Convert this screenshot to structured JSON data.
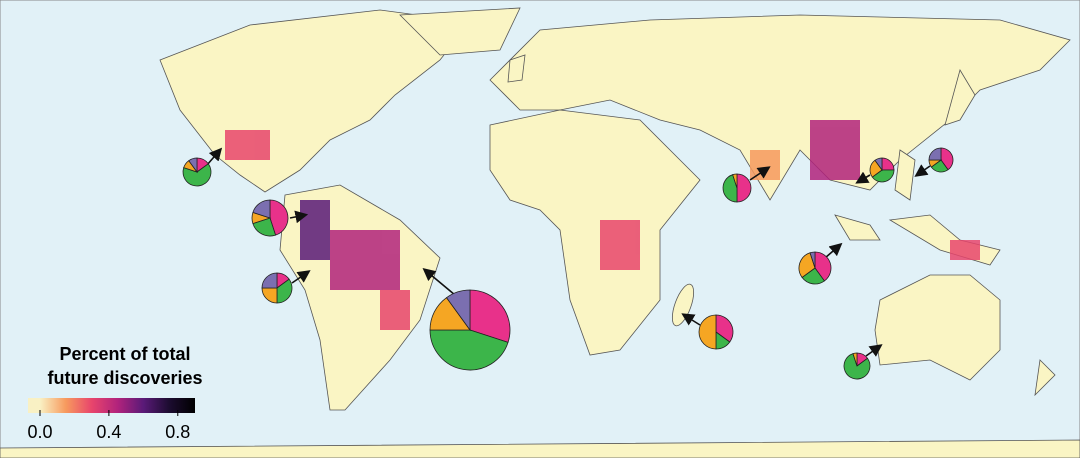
{
  "legend": {
    "title_lines": [
      "Percent of total",
      "future discoveries"
    ],
    "clim": [
      0,
      0.9
    ],
    "ticks": [
      {
        "value": 0,
        "label": "0.0"
      },
      {
        "value": 0.4,
        "label": "0.4"
      },
      {
        "value": 0.8,
        "label": "0.8"
      }
    ],
    "colors": [
      "#f9f1c4",
      "#f79a5e",
      "#e8456c",
      "#b2237c",
      "#5a1a78",
      "#1c0c30",
      "#000000"
    ]
  },
  "pie_colors": [
    "#e8318a",
    "#3cb54a",
    "#f5a623",
    "#7b6fb0"
  ],
  "pies": [
    [
      15,
      65,
      10,
      10
    ],
    [
      45,
      25,
      10,
      20
    ],
    [
      15,
      35,
      25,
      25
    ],
    [
      30,
      45,
      15,
      10
    ],
    [
      50,
      45,
      5,
      0
    ],
    [
      35,
      15,
      50,
      0
    ],
    [
      25,
      40,
      25,
      10
    ],
    [
      40,
      25,
      10,
      25
    ],
    [
      40,
      25,
      30,
      5
    ],
    [
      15,
      80,
      5,
      0
    ]
  ]
}
